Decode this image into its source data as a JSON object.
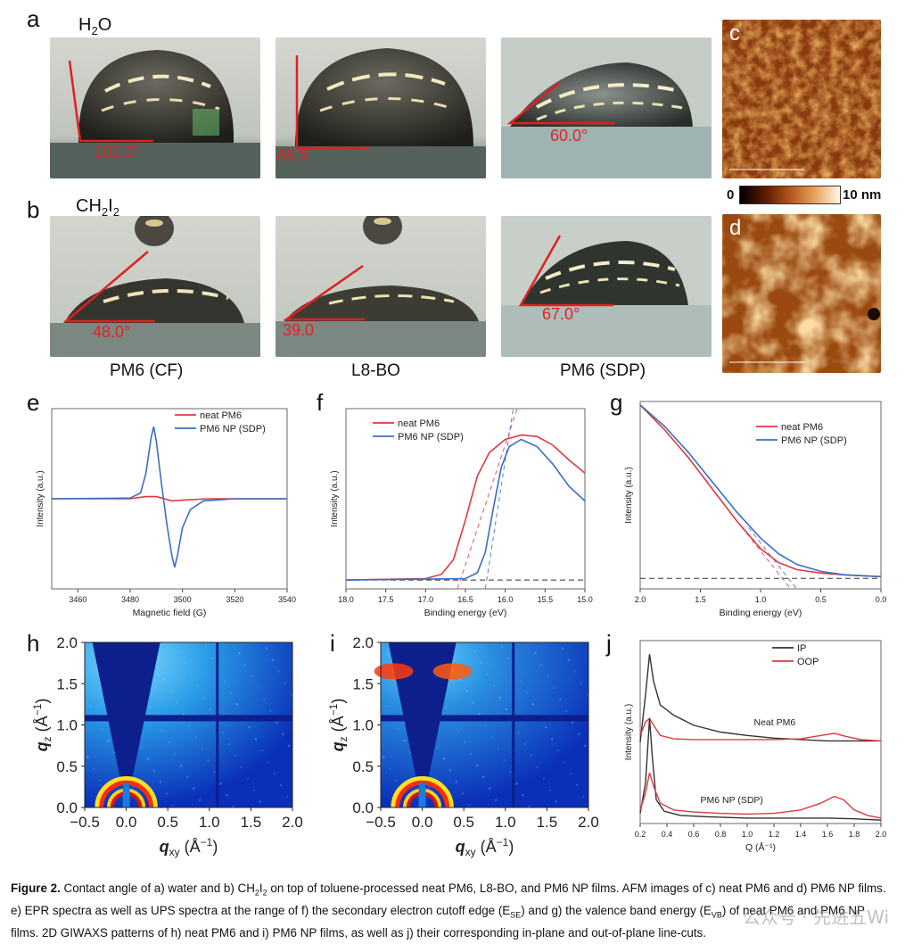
{
  "panels": {
    "a": {
      "label": "a",
      "title_main": "H",
      "title_sub": "2",
      "title_tail": "O",
      "angles": [
        "101.0°",
        "89.9",
        "60.0°"
      ]
    },
    "b": {
      "label": "b",
      "title_main": "CH",
      "title_sub1": "2",
      "title_mid": "I",
      "title_sub2": "2",
      "angles": [
        "48.0°",
        "39.0",
        "67.0°"
      ]
    },
    "c": {
      "label": "c"
    },
    "d": {
      "label": "d"
    },
    "colorbar": {
      "min": "0",
      "max": "10 nm"
    },
    "samples": [
      "PM6 (CF)",
      "L8-BO",
      "PM6 (SDP)"
    ],
    "e": {
      "label": "e"
    },
    "f": {
      "label": "f"
    },
    "g": {
      "label": "g"
    },
    "h": {
      "label": "h"
    },
    "i": {
      "label": "i"
    },
    "j": {
      "label": "j"
    }
  },
  "caption": {
    "lead": "Figure 2.",
    "text_1": " Contact angle of a) water and b) CH",
    "text_2": " on top of toluene-processed neat PM6, L8-BO, and PM6 NP films. AFM images of c) neat PM6 and d) PM6 NP films. e) EPR spectra as well as UPS spectra at the range of f) the secondary electron cutoff edge (E",
    "text_3": ") and g) the valence band energy (E",
    "text_4": ") of neat PM6 and PM6 NP films. 2D GIWAXS patterns of h) neat PM6 and i) PM6 NP films, as well as j) their corresponding in-plane and out-of-plane line-cuts.",
    "sub_se": "SE",
    "sub_vb": "VB",
    "ch2i2": "CH2I2"
  },
  "watermark": "公众号 · 先进五Wi",
  "chart_data": [
    {
      "id": "e",
      "type": "line",
      "xlabel": "Magnetic field (G)",
      "ylabel": "Intensity (a.u.)",
      "xlim": [
        3450,
        3540
      ],
      "xticks": [
        "3460",
        "3480",
        "3500",
        "3520",
        "3540"
      ],
      "series": [
        {
          "name": "neat PM6",
          "color": "#e0383e",
          "x": [
            3450,
            3480,
            3486,
            3490,
            3493,
            3496,
            3500,
            3510,
            3540
          ],
          "y": [
            0,
            0,
            0.03,
            0.03,
            0,
            -0.03,
            -0.02,
            0,
            0
          ]
        },
        {
          "name": "PM6 NP (SDP)",
          "color": "#3a6fc4",
          "x": [
            3450,
            3480,
            3484,
            3486,
            3488,
            3489,
            3490,
            3492,
            3494,
            3496,
            3497,
            3498,
            3500,
            3503,
            3508,
            3520,
            3540
          ],
          "y": [
            0,
            0.01,
            0.08,
            0.35,
            0.85,
            1.0,
            0.8,
            0.2,
            -0.35,
            -0.8,
            -0.95,
            -0.8,
            -0.4,
            -0.15,
            -0.03,
            0,
            0
          ]
        }
      ],
      "legend": "top-right"
    },
    {
      "id": "f",
      "type": "line",
      "xlabel": "Binding energy (eV)",
      "ylabel": "Intensity (a.u.)",
      "xlim": [
        18.0,
        15.0
      ],
      "xticks": [
        "18.0",
        "17.5",
        "17.0",
        "16.5",
        "16.0",
        "15.5",
        "15.0"
      ],
      "series": [
        {
          "name": "neat PM6",
          "color": "#e0383e",
          "x": [
            18.0,
            17.0,
            16.8,
            16.65,
            16.5,
            16.35,
            16.2,
            16.0,
            15.8,
            15.6,
            15.4,
            15.2,
            15.0
          ],
          "y": [
            0.01,
            0.02,
            0.05,
            0.15,
            0.42,
            0.72,
            0.88,
            0.97,
            1.0,
            0.99,
            0.93,
            0.83,
            0.74
          ]
        },
        {
          "name": "PM6 NP (SDP)",
          "color": "#3a6fc4",
          "x": [
            18.0,
            16.5,
            16.35,
            16.25,
            16.15,
            16.05,
            15.95,
            15.8,
            15.6,
            15.4,
            15.2,
            15.0
          ],
          "y": [
            0.01,
            0.02,
            0.06,
            0.2,
            0.5,
            0.78,
            0.92,
            0.97,
            0.92,
            0.8,
            0.65,
            0.55
          ]
        }
      ],
      "legend": "top-left"
    },
    {
      "id": "g",
      "type": "line",
      "xlabel": "Binding energy (eV)",
      "ylabel": "Intensity (a.u.)",
      "xlim": [
        2.0,
        0.0
      ],
      "xticks": [
        "2.0",
        "1.5",
        "1.0",
        "0.5",
        "0.0"
      ],
      "series": [
        {
          "name": "neat PM6",
          "color": "#e0383e",
          "x": [
            2.0,
            1.8,
            1.6,
            1.4,
            1.2,
            1.0,
            0.85,
            0.7,
            0.5,
            0.3,
            0.0
          ],
          "y": [
            1.0,
            0.86,
            0.7,
            0.52,
            0.34,
            0.18,
            0.1,
            0.06,
            0.04,
            0.03,
            0.02
          ]
        },
        {
          "name": "PM6 NP (SDP)",
          "color": "#3a6fc4",
          "x": [
            2.0,
            1.8,
            1.6,
            1.4,
            1.2,
            1.0,
            0.85,
            0.7,
            0.5,
            0.3,
            0.0
          ],
          "y": [
            1.0,
            0.88,
            0.73,
            0.56,
            0.39,
            0.24,
            0.15,
            0.09,
            0.05,
            0.03,
            0.02
          ]
        }
      ],
      "legend": "top-right"
    },
    {
      "id": "h",
      "type": "heatmap",
      "xlabel_main": "q",
      "xlabel_sub": "xy",
      "xlabel_unit": " (Å",
      "xlabel_sup": "−1",
      "xlabel_close": ")",
      "ylabel_main": "q",
      "ylabel_sub": "z",
      "ylabel_unit": " (Å",
      "ylabel_sup": "−1",
      "ylabel_close": ")",
      "xlim": [
        -0.5,
        2.0
      ],
      "ylim": [
        0.0,
        2.0
      ],
      "xticks": [
        "−0.5",
        "0.0",
        "0.5",
        "1.0",
        "1.5",
        "2.0"
      ],
      "yticks": [
        "0.0",
        "0.5",
        "1.0",
        "1.5",
        "2.0"
      ]
    },
    {
      "id": "i",
      "type": "heatmap",
      "xlabel_main": "q",
      "xlabel_sub": "xy",
      "xlabel_unit": " (Å",
      "xlabel_sup": "−1",
      "xlabel_close": ")",
      "ylabel_main": "q",
      "ylabel_sub": "z",
      "ylabel_unit": " (Å",
      "ylabel_sup": "−1",
      "ylabel_close": ")",
      "xlim": [
        -0.5,
        2.0
      ],
      "ylim": [
        0.0,
        2.0
      ],
      "xticks": [
        "−0.5",
        "0.0",
        "0.5",
        "1.0",
        "1.5",
        "2.0"
      ],
      "yticks": [
        "0.0",
        "0.5",
        "1.0",
        "1.5",
        "2.0"
      ]
    },
    {
      "id": "j",
      "type": "line",
      "xlabel": "Q (Å⁻¹)",
      "ylabel": "Intensity (a.u.)",
      "xlim": [
        0.2,
        2.0
      ],
      "xticks": [
        "0.2",
        "0.4",
        "0.6",
        "0.8",
        "1.0",
        "1.2",
        "1.4",
        "1.6",
        "1.8",
        "2.0"
      ],
      "annotations": [
        "Neat PM6",
        "PM6 NP (SDP)"
      ],
      "series": [
        {
          "name": "IP",
          "color": "#333333",
          "x": [
            0.2,
            0.24,
            0.27,
            0.3,
            0.35,
            0.45,
            0.6,
            0.8,
            1.0,
            1.2,
            1.4,
            1.6,
            1.8,
            2.0
          ],
          "y": [
            1.2,
            1.9,
            2.5,
            2.1,
            1.75,
            1.6,
            1.45,
            1.35,
            1.3,
            1.26,
            1.24,
            1.22,
            1.22,
            1.22
          ]
        },
        {
          "name": "OOP",
          "color": "#e0383e",
          "x": [
            0.2,
            0.24,
            0.27,
            0.3,
            0.35,
            0.45,
            0.6,
            0.8,
            1.0,
            1.2,
            1.4,
            1.55,
            1.65,
            1.75,
            1.85,
            2.0
          ],
          "y": [
            1.3,
            1.5,
            1.55,
            1.45,
            1.3,
            1.25,
            1.24,
            1.24,
            1.24,
            1.24,
            1.25,
            1.3,
            1.33,
            1.28,
            1.24,
            1.22
          ]
        },
        {
          "name": "IP",
          "color": "#333333",
          "x": [
            0.2,
            0.24,
            0.27,
            0.29,
            0.32,
            0.38,
            0.5,
            0.7,
            1.0,
            1.3,
            1.6,
            1.8,
            2.0
          ],
          "y": [
            0.15,
            0.6,
            1.55,
            1.0,
            0.35,
            0.18,
            0.12,
            0.1,
            0.08,
            0.08,
            0.08,
            0.07,
            0.05
          ]
        },
        {
          "name": "OOP",
          "color": "#e0383e",
          "x": [
            0.2,
            0.24,
            0.27,
            0.3,
            0.35,
            0.45,
            0.6,
            0.8,
            1.0,
            1.2,
            1.4,
            1.55,
            1.65,
            1.72,
            1.8,
            1.9,
            2.0
          ],
          "y": [
            0.2,
            0.45,
            0.75,
            0.55,
            0.3,
            0.2,
            0.17,
            0.15,
            0.14,
            0.15,
            0.2,
            0.3,
            0.4,
            0.35,
            0.2,
            0.12,
            0.08
          ]
        }
      ],
      "legend": "top-center"
    }
  ]
}
